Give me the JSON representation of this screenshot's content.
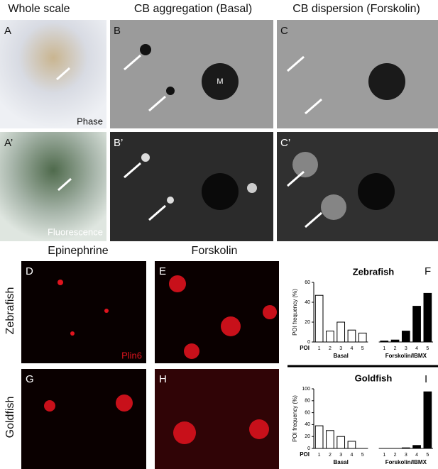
{
  "headers": {
    "top": [
      "Whole scale",
      "CB aggregation (Basal)",
      "CB dispersion (Forskolin)"
    ],
    "bottom": [
      "Epinephrine",
      "Forskolin"
    ]
  },
  "row_labels": [
    "Zebrafish",
    "Goldfish"
  ],
  "panel_letters": [
    "A",
    "B",
    "C",
    "A’",
    "B’",
    "C’",
    "D",
    "E",
    "F",
    "G",
    "H",
    "I"
  ],
  "annotations": {
    "phase": "Phase",
    "fluorescence": "Fluorescence",
    "melanophore": "M",
    "stain": "Plin6"
  },
  "chart_data": [
    {
      "type": "bar",
      "title": "Zebrafish",
      "x_label": "POI",
      "y_label": "POI frequency (%)",
      "categories": [
        "1",
        "2",
        "3",
        "4",
        "5"
      ],
      "series": [
        {
          "name": "Basal",
          "color": "#ffffff",
          "values": [
            47,
            11,
            20,
            12,
            9
          ]
        },
        {
          "name": "Forskolin/IBMX",
          "color": "#000000",
          "values": [
            1,
            2,
            11,
            36,
            49
          ]
        }
      ],
      "ylim": [
        0,
        60
      ],
      "yticks": [
        0,
        20,
        40,
        60
      ]
    },
    {
      "type": "bar",
      "title": "Goldfish",
      "x_label": "POI",
      "y_label": "POI frequency (%)",
      "categories": [
        "1",
        "2",
        "3",
        "4",
        "5"
      ],
      "series": [
        {
          "name": "Basal",
          "color": "#ffffff",
          "values": [
            38,
            30,
            20,
            12,
            0
          ]
        },
        {
          "name": "Forskolin/IBMX",
          "color": "#000000",
          "values": [
            0,
            0,
            1,
            5,
            95
          ]
        }
      ],
      "ylim": [
        0,
        100
      ],
      "yticks": [
        0,
        20,
        40,
        60,
        80,
        100
      ]
    }
  ]
}
